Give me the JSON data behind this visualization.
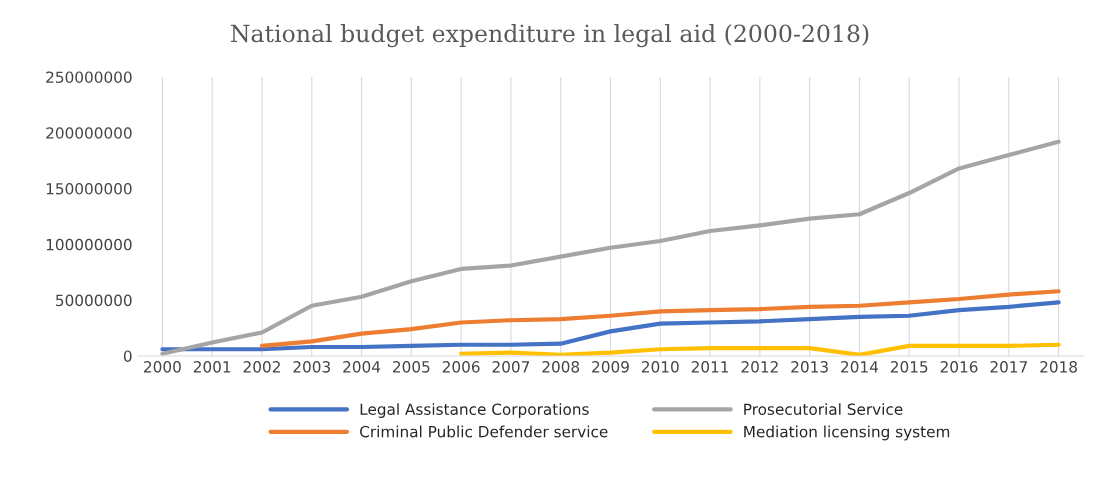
{
  "chart_data": {
    "type": "line",
    "title": "National budget expenditure in legal aid (2000-2018)",
    "categories": [
      "2000",
      "2001",
      "2002",
      "2003",
      "2004",
      "2005",
      "2006",
      "2007",
      "2008",
      "2009",
      "2010",
      "2011",
      "2012",
      "2013",
      "2014",
      "2015",
      "2016",
      "2017",
      "2018"
    ],
    "series": [
      {
        "name": "Legal Assistance Corporations",
        "color": "#4472c4",
        "values": [
          6000000,
          6000000,
          6000000,
          8000000,
          8000000,
          9000000,
          10000000,
          10000000,
          11000000,
          22000000,
          29000000,
          30000000,
          31000000,
          33000000,
          35000000,
          36000000,
          41000000,
          44000000,
          48000000
        ]
      },
      {
        "name": "Criminal Public Defender service",
        "color": "#ed7d31",
        "values": [
          null,
          null,
          9000000,
          13000000,
          20000000,
          24000000,
          30000000,
          32000000,
          33000000,
          36000000,
          40000000,
          41000000,
          42000000,
          44000000,
          45000000,
          48000000,
          51000000,
          55000000,
          58000000
        ]
      },
      {
        "name": "Prosecutorial Service",
        "color": "#a5a5a5",
        "values": [
          2000000,
          12000000,
          21000000,
          45000000,
          53000000,
          67000000,
          78000000,
          81000000,
          89000000,
          97000000,
          103000000,
          112000000,
          117000000,
          123000000,
          127000000,
          146000000,
          168000000,
          180000000,
          192000000
        ]
      },
      {
        "name": "Mediation licensing system",
        "color": "#ffc000",
        "values": [
          null,
          null,
          null,
          null,
          null,
          null,
          2000000,
          3000000,
          1000000,
          3000000,
          6000000,
          7000000,
          7000000,
          7000000,
          1000000,
          9000000,
          9000000,
          9000000,
          10000000
        ]
      }
    ],
    "ylim": [
      0,
      250000000
    ],
    "yticks": [
      0,
      50000000,
      100000000,
      150000000,
      200000000,
      250000000
    ],
    "grid": "x",
    "legend": "bottom",
    "marker": "none",
    "line_style": "solid"
  }
}
